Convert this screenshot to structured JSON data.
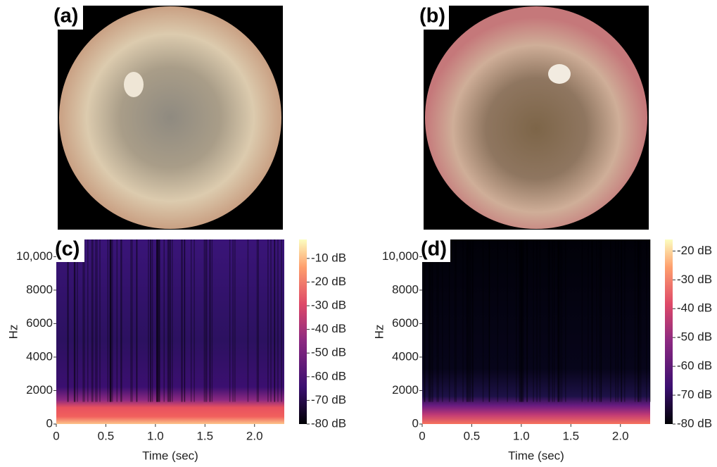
{
  "panels": [
    {
      "label": "(a)"
    },
    {
      "label": "(b)"
    }
  ],
  "chart_data": [
    {
      "type": "spectrogram",
      "label": "(c)",
      "xlabel": "Time (sec)",
      "ylabel": "Hz",
      "xlim": [
        0,
        2.3
      ],
      "xticks": [
        0,
        0.5,
        {
          "value": 1,
          "label": "1.0"
        },
        1.5,
        {
          "value": 2,
          "label": "2.0"
        }
      ],
      "ylim": [
        0,
        11025
      ],
      "yticks": [
        0,
        2000,
        4000,
        6000,
        8000,
        {
          "value": 10000,
          "label": "10,000"
        }
      ],
      "colorbar_lim": [
        -80,
        -2
      ],
      "colorbar_ticks": [
        {
          "value": -10,
          "label": "-10 dB"
        },
        {
          "value": -20,
          "label": "-20 dB"
        },
        {
          "value": -30,
          "label": "-30 dB"
        },
        {
          "value": -40,
          "label": "-40 dB"
        },
        {
          "value": -50,
          "label": "-50 dB"
        },
        {
          "value": -60,
          "label": "-60 dB"
        },
        {
          "value": -70,
          "label": "-70 dB"
        },
        {
          "value": -80,
          "label": "-80 dB"
        }
      ]
    },
    {
      "type": "spectrogram",
      "label": "(d)",
      "xlabel": "Time (sec)",
      "ylabel": "Hz",
      "xlim": [
        0,
        2.3
      ],
      "xticks": [
        0,
        0.5,
        {
          "value": 1,
          "label": "1.0"
        },
        1.5,
        {
          "value": 2,
          "label": "2.0"
        }
      ],
      "ylim": [
        0,
        11025
      ],
      "yticks": [
        0,
        2000,
        4000,
        6000,
        8000,
        {
          "value": 10000,
          "label": "10,000"
        }
      ],
      "colorbar_lim": [
        -80,
        -16
      ],
      "colorbar_ticks": [
        {
          "value": -20,
          "label": "-20 dB"
        },
        {
          "value": -30,
          "label": "-30 dB"
        },
        {
          "value": -40,
          "label": "-40 dB"
        },
        {
          "value": -50,
          "label": "-50 dB"
        },
        {
          "value": -60,
          "label": "-60 dB"
        },
        {
          "value": -70,
          "label": "-70 dB"
        },
        {
          "value": -80,
          "label": "-80 dB"
        }
      ]
    }
  ]
}
